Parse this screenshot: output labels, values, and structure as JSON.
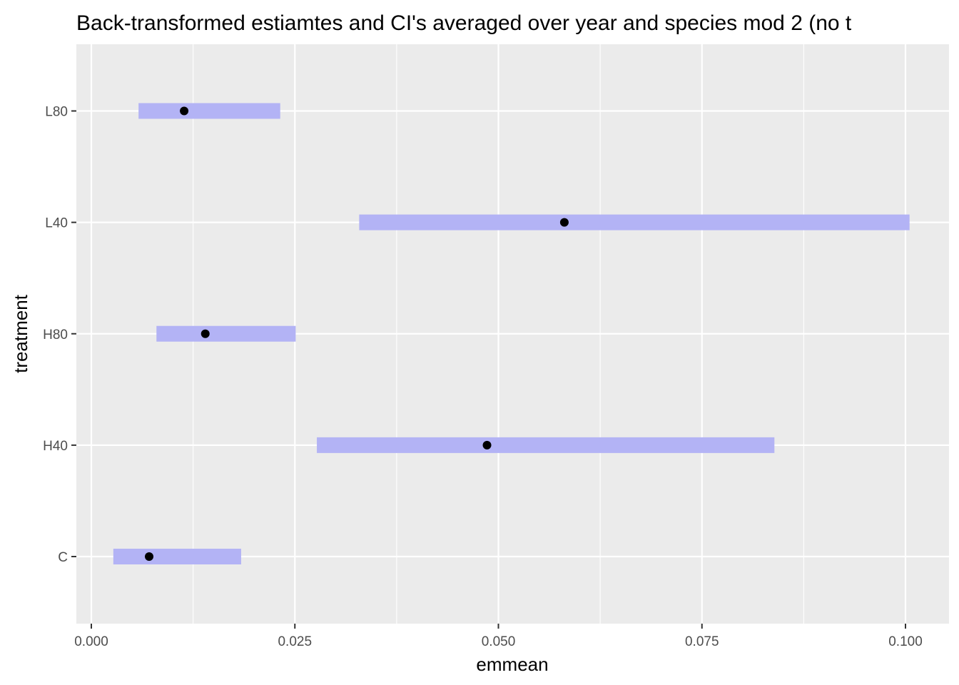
{
  "chart_data": {
    "type": "interval",
    "title": "Back-transformed estiamtes and CI's averaged over year and species mod 2 (no t",
    "xlabel": "emmean",
    "ylabel": "treatment",
    "xlim": [
      -0.001,
      0.1053
    ],
    "x_ticks": [
      0.0,
      0.025,
      0.05,
      0.075,
      0.1
    ],
    "x_tick_labels": [
      "0.000",
      "0.025",
      "0.050",
      "0.075",
      "0.100"
    ],
    "categories": [
      "C",
      "H40",
      "H80",
      "L40",
      "L80"
    ],
    "emmean": [
      0.0071,
      0.0486,
      0.014,
      0.0581,
      0.0114
    ],
    "lower": [
      0.0027,
      0.0277,
      0.008,
      0.0329,
      0.0058
    ],
    "upper": [
      0.0184,
      0.0839,
      0.0251,
      0.1005,
      0.0232
    ],
    "grid": true,
    "legend": "none",
    "colors": {
      "panel": "#ebebeb",
      "grid": "#ffffff",
      "ci_bar": "#b3b3f5",
      "point": "#000000"
    }
  }
}
